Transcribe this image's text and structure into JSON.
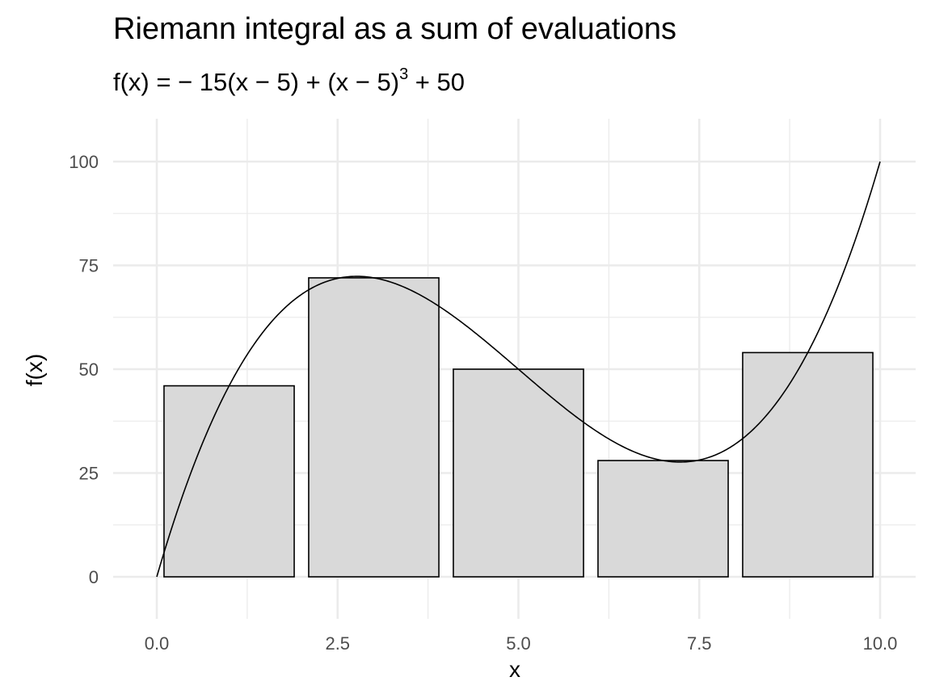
{
  "chart_data": {
    "type": "bar",
    "title": "Riemann integral as a sum of evaluations",
    "subtitle": {
      "lhs": "f(x)",
      "base": " = − 15(x − 5) + (x − 5)",
      "exponent": "3",
      "tail": " + 50"
    },
    "xlabel": "x",
    "ylabel": "f(x)",
    "xlim": [
      0,
      10
    ],
    "ylim": [
      0,
      100
    ],
    "x_ticks": [
      0,
      2.5,
      5,
      7.5,
      10
    ],
    "x_tick_labels": [
      "0.0",
      "2.5",
      "5.0",
      "7.5",
      "10.0"
    ],
    "y_ticks": [
      0,
      25,
      50,
      75,
      100
    ],
    "y_tick_labels": [
      "0",
      "25",
      "50",
      "75",
      "100"
    ],
    "grid": true,
    "bars": [
      {
        "x_start": 0.1,
        "x_end": 1.9,
        "value": 46
      },
      {
        "x_start": 2.1,
        "x_end": 3.9,
        "value": 72
      },
      {
        "x_start": 4.1,
        "x_end": 5.9,
        "value": 50
      },
      {
        "x_start": 6.1,
        "x_end": 7.9,
        "value": 28
      },
      {
        "x_start": 8.1,
        "x_end": 9.9,
        "value": 54
      }
    ],
    "curve": {
      "function": "-15*(x-5) + (x-5)^3 + 50",
      "x_range": [
        0,
        10
      ]
    }
  }
}
